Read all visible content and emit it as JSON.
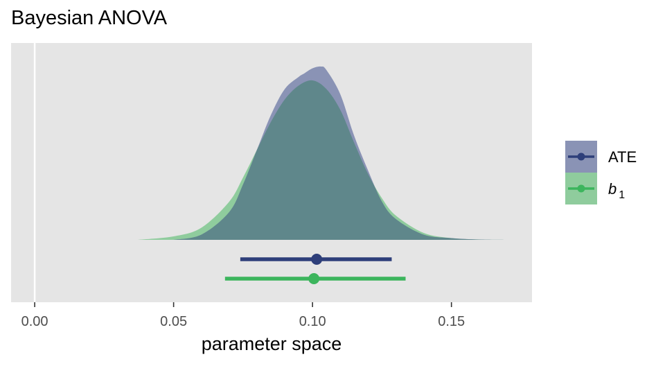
{
  "chart_data": {
    "type": "area",
    "title": "Bayesian ANOVA",
    "xlabel": "parameter space",
    "ylabel": "",
    "xlim": [
      -0.0085,
      0.179
    ],
    "x_ticks": [
      0.0,
      0.05,
      0.1,
      0.15
    ],
    "x_tick_labels": [
      "0.00",
      "0.05",
      "0.10",
      "0.15"
    ],
    "reference_line_x": 0.0,
    "grid": false,
    "legend_position": "right",
    "series": [
      {
        "name": "ATE",
        "legend_label": "ATE",
        "fill_color": "#8a93b5",
        "line_color": "#2e3f7a",
        "density": {
          "x": [
            0.05,
            0.06,
            0.07,
            0.075,
            0.08,
            0.085,
            0.09,
            0.095,
            0.097,
            0.1,
            0.103,
            0.105,
            0.11,
            0.115,
            0.12,
            0.125,
            0.13,
            0.14,
            0.15,
            0.16,
            0.171
          ],
          "y": [
            0.0,
            0.03,
            0.16,
            0.32,
            0.52,
            0.72,
            0.87,
            0.94,
            0.96,
            0.99,
            1.0,
            0.98,
            0.84,
            0.6,
            0.4,
            0.22,
            0.12,
            0.03,
            0.01,
            0.002,
            0.0
          ]
        },
        "point_estimate": 0.1015,
        "interval": [
          0.074,
          0.1285
        ]
      },
      {
        "name": "b_1",
        "legend_label": "b",
        "legend_subscript": "1",
        "fill_color": "#8fcc9d",
        "line_color": "#3cb55d",
        "density": {
          "x": [
            0.037,
            0.05,
            0.06,
            0.07,
            0.075,
            0.08,
            0.085,
            0.09,
            0.095,
            0.1,
            0.105,
            0.11,
            0.115,
            0.12,
            0.125,
            0.13,
            0.14,
            0.15,
            0.16,
            0.171
          ],
          "y": [
            0.0,
            0.02,
            0.07,
            0.22,
            0.36,
            0.52,
            0.68,
            0.81,
            0.89,
            0.92,
            0.87,
            0.75,
            0.56,
            0.38,
            0.24,
            0.14,
            0.04,
            0.01,
            0.002,
            0.0
          ]
        },
        "point_estimate": 0.1005,
        "interval": [
          0.0685,
          0.1335
        ]
      }
    ],
    "overlap_fill_color": "#5f878b"
  }
}
